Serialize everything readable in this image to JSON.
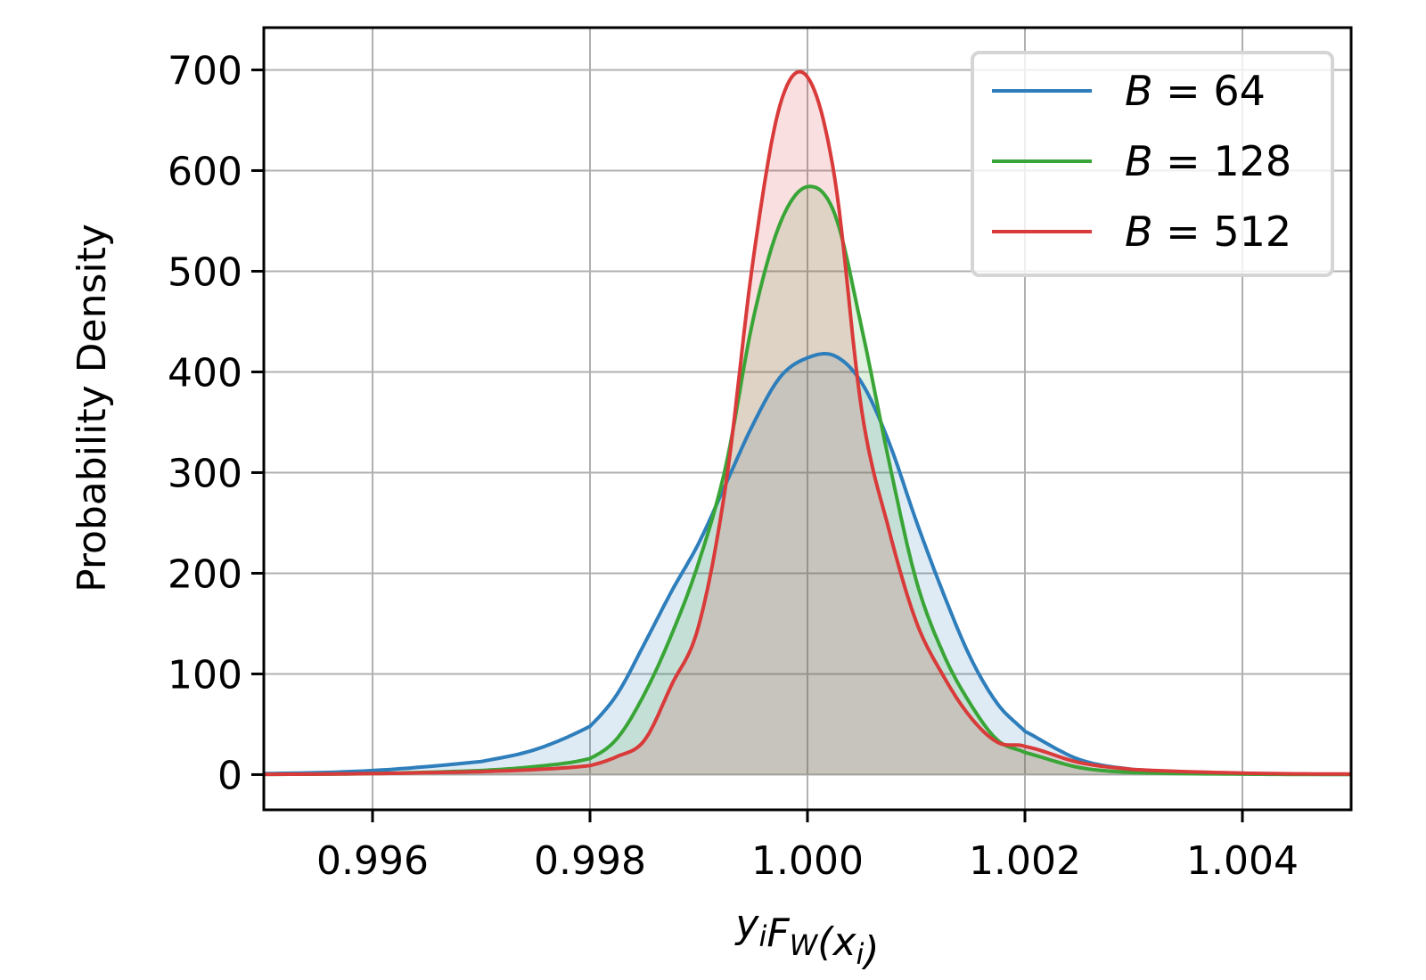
{
  "chart_data": {
    "type": "line",
    "title": "",
    "xlabel": "y_iF_W(x_i)",
    "ylabel": "Probability Density",
    "xlim": [
      0.995,
      1.005
    ],
    "ylim": [
      -35,
      742
    ],
    "grid": true,
    "legend_position": "top-right",
    "xticks": [
      0.996,
      0.998,
      1.0,
      1.002,
      1.004
    ],
    "xtick_labels": [
      "0.996",
      "0.998",
      "1.000",
      "1.002",
      "1.004"
    ],
    "yticks": [
      0,
      100,
      200,
      300,
      400,
      500,
      600,
      700
    ],
    "ytick_labels": [
      "0",
      "100",
      "200",
      "300",
      "400",
      "500",
      "600",
      "700"
    ],
    "x": [
      0.995,
      0.996,
      0.997,
      0.9975,
      0.998,
      0.99825,
      0.9985,
      0.99875,
      0.999,
      0.99925,
      0.9995,
      0.99975,
      1.0,
      1.00025,
      1.0005,
      1.00075,
      1.001,
      1.00125,
      1.0015,
      1.00175,
      1.002,
      1.0025,
      1.003,
      1.004,
      1.005
    ],
    "series": [
      {
        "name": "B = 64",
        "color": "#2e7ebc",
        "fill": "rgba(31,119,180,0.15)",
        "values": [
          1,
          4,
          13,
          25,
          48,
          80,
          130,
          182,
          230,
          289,
          348,
          395,
          414,
          416,
          389,
          330,
          252,
          180,
          116,
          70,
          43,
          15,
          5,
          1,
          0.3
        ]
      },
      {
        "name": "B = 128",
        "color": "#3aa537",
        "fill": "rgba(44,160,44,0.15)",
        "values": [
          0.3,
          1,
          4,
          8,
          16,
          36,
          80,
          139,
          211,
          307,
          452,
          548,
          584,
          557,
          443,
          311,
          193,
          120,
          70,
          34,
          22,
          7,
          2,
          0.5,
          0.1
        ]
      },
      {
        "name": "B = 512",
        "color": "#d93a3a",
        "fill": "rgba(214,39,40,0.15)",
        "values": [
          0.3,
          1,
          3,
          5,
          9,
          18,
          34,
          89,
          148,
          289,
          511,
          666,
          693,
          593,
          361,
          243,
          152,
          98,
          57,
          32,
          28,
          12,
          5,
          1.5,
          0.5
        ]
      }
    ]
  }
}
